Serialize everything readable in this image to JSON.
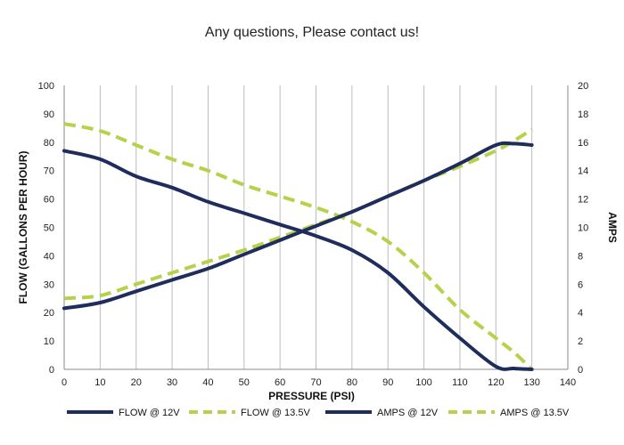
{
  "header": {
    "title": "Any questions, Please contact us!"
  },
  "colors": {
    "navy": "#1f2d5c",
    "lime": "#b5d24a",
    "grid": "#bdbdbd"
  },
  "chart_data": {
    "type": "line",
    "xlabel": "PRESSURE (PSI)",
    "ylabel": "FLOW (GALLONS PER HOUR)",
    "y2label": "AMPS",
    "xlim": [
      0,
      140
    ],
    "ylim": [
      0,
      100
    ],
    "y2lim": [
      0,
      20
    ],
    "xticks": [
      "0",
      "10",
      "20",
      "30",
      "40",
      "50",
      "60",
      "70",
      "80",
      "90",
      "100",
      "110",
      "120",
      "130",
      "140"
    ],
    "yticks": [
      "0",
      "10",
      "20",
      "30",
      "40",
      "50",
      "60",
      "70",
      "80",
      "90",
      "100"
    ],
    "y2ticks": [
      "0",
      "2",
      "4",
      "6",
      "8",
      "10",
      "12",
      "14",
      "16",
      "18",
      "20"
    ],
    "grid": "vertical",
    "legend_position": "bottom",
    "series": [
      {
        "name": "FLOW @ 12V",
        "axis": "left",
        "style": "solid",
        "color": "#1f2d5c",
        "x": [
          0,
          10,
          20,
          30,
          40,
          50,
          60,
          70,
          80,
          90,
          100,
          110,
          120,
          125,
          130
        ],
        "y": [
          77,
          74,
          68,
          64,
          59,
          55,
          51,
          47,
          42,
          34,
          22,
          11,
          1,
          0.3,
          0
        ]
      },
      {
        "name": "FLOW @ 13.5V",
        "axis": "left",
        "style": "dashed",
        "color": "#b5d24a",
        "x": [
          0,
          10,
          20,
          30,
          40,
          50,
          60,
          70,
          80,
          90,
          100,
          110,
          120,
          125,
          130
        ],
        "y": [
          86.5,
          84,
          79,
          74,
          70,
          65,
          61,
          57,
          52,
          45,
          34,
          21,
          11,
          6,
          0
        ]
      },
      {
        "name": "AMPS @ 12V",
        "axis": "right",
        "style": "solid",
        "color": "#1f2d5c",
        "x": [
          0,
          10,
          20,
          30,
          40,
          50,
          60,
          70,
          80,
          90,
          100,
          110,
          120,
          125,
          130
        ],
        "y": [
          4.3,
          4.7,
          5.5,
          6.3,
          7.1,
          8.1,
          9.1,
          10.1,
          11.1,
          12.2,
          13.3,
          14.5,
          15.8,
          15.9,
          15.8
        ]
      },
      {
        "name": "AMPS @ 13.5V",
        "axis": "right",
        "style": "dashed",
        "color": "#b5d24a",
        "x": [
          0,
          10,
          20,
          30,
          40,
          50,
          60,
          70,
          80,
          90,
          100,
          110,
          120,
          125,
          130
        ],
        "y": [
          5.0,
          5.2,
          6.0,
          6.8,
          7.6,
          8.4,
          9.3,
          10.2,
          11.1,
          12.2,
          13.3,
          14.3,
          15.4,
          16.1,
          16.9
        ]
      }
    ]
  }
}
